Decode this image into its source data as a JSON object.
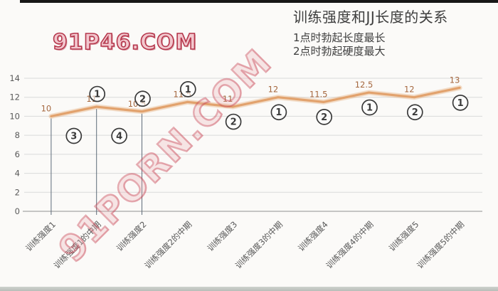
{
  "watermarks": {
    "corner": {
      "text": "91P46.COM",
      "color": "#b5374c"
    },
    "diagonal": {
      "text": "91PORN.COM",
      "color": "#c63848"
    }
  },
  "chart_data": {
    "type": "line",
    "title": "训练强度和JJ长度的关系",
    "notes": [
      "1点时勃起长度最长",
      "2点时勃起硬度最大"
    ],
    "xlabel": "",
    "ylabel": "",
    "categories": [
      "训练强度1",
      "训练强度1的中期",
      "训练强度2",
      "训练强度2的中期",
      "训练强度3",
      "训练强度3的中期",
      "训练强度4",
      "训练强度4的中期",
      "训练强度5",
      "训练强度5的中期"
    ],
    "series": [
      {
        "name": "JJ长度",
        "values": [
          10,
          11,
          10.5,
          11.5,
          11,
          12,
          11.5,
          12.5,
          12,
          13
        ]
      }
    ],
    "ylim": [
      0,
      14
    ],
    "yticks": [
      0,
      2,
      4,
      6,
      8,
      10,
      12,
      14
    ],
    "grid": "horizontal",
    "legend": "none",
    "line_color": "#e2a26d",
    "value_label_color": "#a5673e",
    "axis_text_color": "#595959",
    "gridline_color": "#dadada",
    "axis_line_color": "#b3b3b3",
    "drop_line_color": "#5e6b79",
    "drop_line_indices": [
      0,
      1,
      2
    ],
    "annotation_circle_color": "#3a3a3a",
    "point_annotations": [
      {
        "index": 1,
        "digit": "1",
        "side": "above"
      },
      {
        "index": 2,
        "digit": "2",
        "side": "above"
      },
      {
        "index": 3,
        "digit": "1",
        "side": "above"
      },
      {
        "index": 4,
        "digit": "2",
        "side": "below"
      },
      {
        "index": 5,
        "digit": "1",
        "side": "below"
      },
      {
        "index": 6,
        "digit": "2",
        "side": "below"
      },
      {
        "index": 7,
        "digit": "1",
        "side": "below"
      },
      {
        "index": 8,
        "digit": "2",
        "side": "below"
      },
      {
        "index": 9,
        "digit": "1",
        "side": "below"
      }
    ],
    "zone_annotations": [
      {
        "digit": "3",
        "between": [
          0,
          1
        ]
      },
      {
        "digit": "4",
        "between": [
          1,
          2
        ]
      }
    ]
  }
}
